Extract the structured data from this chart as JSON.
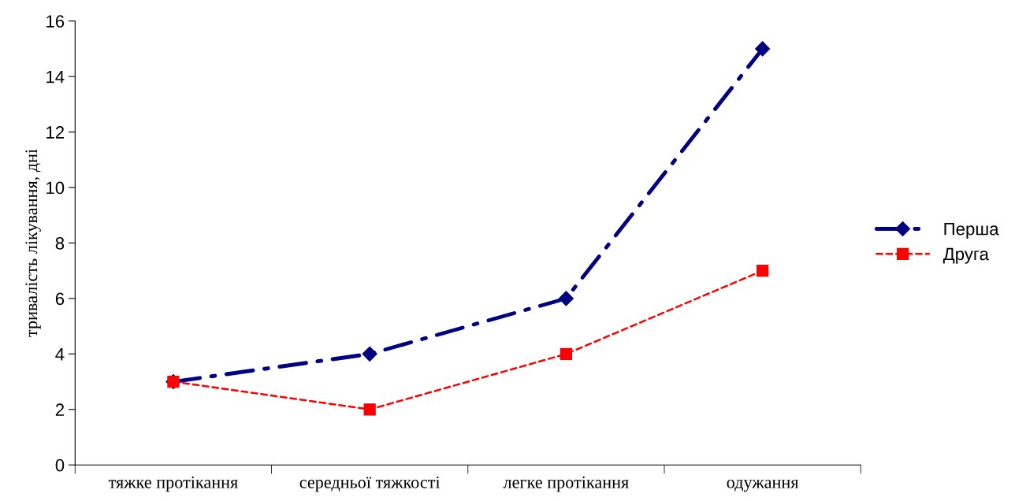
{
  "chart_data": {
    "type": "line",
    "ylabel": "тривалість лікування, дні",
    "categories": [
      "тяжке протікання",
      "середньої тяжкості",
      "легке протікання",
      "одужання"
    ],
    "series": [
      {
        "name": "Перша",
        "color": "#000080",
        "values": [
          3,
          4,
          6,
          15
        ],
        "marker": "diamond",
        "line_style": "dashdot"
      },
      {
        "name": "Друга",
        "color": "#ff0000",
        "values": [
          3,
          2,
          4,
          7
        ],
        "marker": "square",
        "line_style": "dashed"
      }
    ],
    "ylim": [
      0,
      16
    ],
    "yticks": [
      0,
      2,
      4,
      6,
      8,
      10,
      12,
      14,
      16
    ],
    "grid": false,
    "legend": "right"
  }
}
